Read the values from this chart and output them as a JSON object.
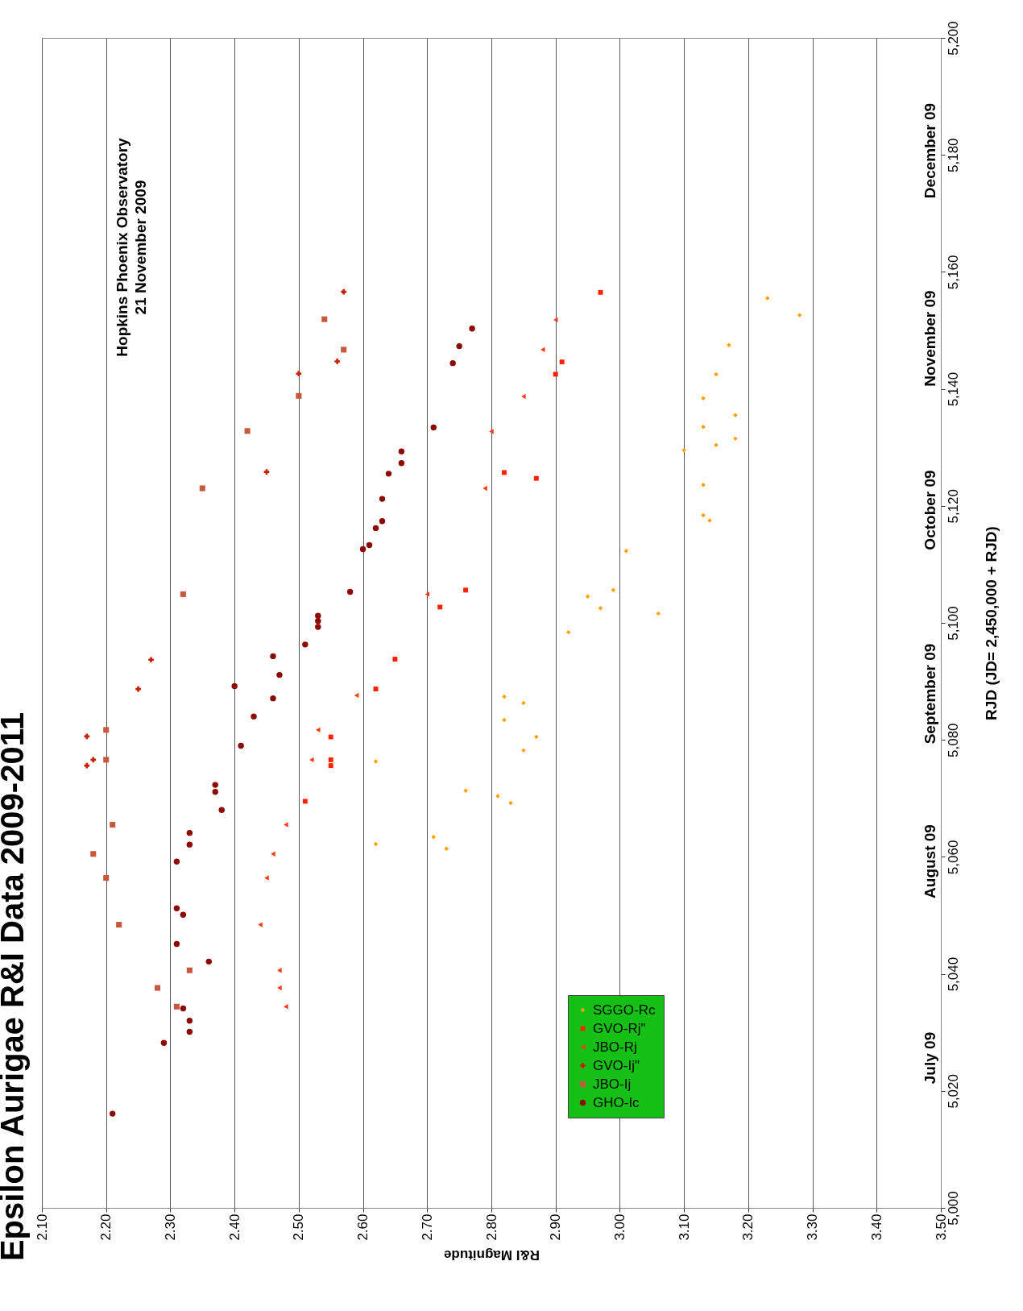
{
  "chart_data": {
    "type": "scatter",
    "title": "Epsilon Aurigae R&I Data 2009-2011",
    "xlabel": "R&I Magnitude",
    "ylabel": "RJD (JD= 2,450,000 + RJD)",
    "xlim": [
      2.1,
      3.5
    ],
    "ylim": [
      5000,
      5200
    ],
    "xticks": [
      {
        "value": 2.1,
        "label": "2.10"
      },
      {
        "value": 2.2,
        "label": "2.20"
      },
      {
        "value": 2.3,
        "label": "2.30"
      },
      {
        "value": 2.4,
        "label": "2.40"
      },
      {
        "value": 2.5,
        "label": "2.50"
      },
      {
        "value": 2.6,
        "label": "2.60"
      },
      {
        "value": 2.7,
        "label": "2.70"
      },
      {
        "value": 2.8,
        "label": "2.80"
      },
      {
        "value": 2.9,
        "label": "2.90"
      },
      {
        "value": 3.0,
        "label": "3.00"
      },
      {
        "value": 3.1,
        "label": "3.10"
      },
      {
        "value": 3.2,
        "label": "3.20"
      },
      {
        "value": 3.3,
        "label": "3.30"
      },
      {
        "value": 3.4,
        "label": "3.40"
      },
      {
        "value": 3.5,
        "label": "3.50"
      }
    ],
    "yticks": [
      {
        "value": 5000,
        "label": "5,000"
      },
      {
        "value": 5020,
        "label": "5,020"
      },
      {
        "value": 5040,
        "label": "5,040"
      },
      {
        "value": 5060,
        "label": "5,060"
      },
      {
        "value": 5080,
        "label": "5,080"
      },
      {
        "value": 5100,
        "label": "5,100"
      },
      {
        "value": 5120,
        "label": "5,120"
      },
      {
        "value": 5140,
        "label": "5,140"
      },
      {
        "value": 5160,
        "label": "5,160"
      },
      {
        "value": 5180,
        "label": "5,180"
      },
      {
        "value": 5200,
        "label": "5,200"
      }
    ],
    "grid": "x",
    "legend": "bottom right",
    "series": [
      {
        "name": "SGGO-Rc",
        "color": "#ffa000",
        "marker": "diamond",
        "x": [
          2.73,
          2.62,
          2.71,
          2.83,
          2.81,
          2.76,
          2.62,
          2.85,
          2.87,
          2.82,
          2.85,
          2.82,
          2.92,
          3.06,
          2.97,
          2.95,
          2.99,
          3.01,
          3.14,
          3.13,
          3.13,
          3.1,
          3.15,
          3.18,
          3.13,
          3.18,
          3.13,
          3.15,
          3.17,
          3.28,
          3.23
        ],
        "values": [
          5061.4,
          5062.2,
          5063.4,
          5069.2,
          5070.4,
          5071.3,
          5076.3,
          5078.2,
          5080.5,
          5083.4,
          5086.3,
          5087.4,
          5098.4,
          5101.6,
          5102.5,
          5104.5,
          5105.6,
          5112.3,
          5117.5,
          5118.4,
          5123.6,
          5129.5,
          5130.4,
          5131.5,
          5133.5,
          5135.5,
          5138.4,
          5142.5,
          5147.5,
          5152.6,
          5155.5
        ]
      },
      {
        "name": "GVO-Rj\"",
        "color": "#ff2000",
        "marker": "square",
        "x": [
          2.51,
          2.55,
          2.55,
          2.55,
          2.62,
          2.65,
          2.72,
          2.76,
          2.87,
          2.82,
          2.9,
          2.91,
          2.97
        ],
        "values": [
          5069.5,
          5075.6,
          5076.6,
          5080.5,
          5088.7,
          5093.8,
          5102.7,
          5105.6,
          5124.7,
          5125.7,
          5142.5,
          5144.6,
          5156.5
        ]
      },
      {
        "name": "JBO-Rj",
        "color": "#ff3a10",
        "marker": "triangle",
        "x": [
          2.48,
          2.47,
          2.47,
          2.44,
          2.45,
          2.46,
          2.48,
          2.52,
          2.53,
          2.59,
          2.7,
          2.79,
          2.8,
          2.85,
          2.88,
          2.9
        ],
        "values": [
          5034.4,
          5037.6,
          5040.6,
          5048.4,
          5056.4,
          5060.5,
          5065.5,
          5076.6,
          5081.7,
          5087.6,
          5104.9,
          5123.0,
          5132.7,
          5138.7,
          5146.7,
          5151.8
        ]
      },
      {
        "name": "GVO-Ij\"",
        "color": "#c81e00",
        "marker": "cross",
        "x": [
          2.17,
          2.18,
          2.17,
          2.25,
          2.27,
          2.45,
          2.5,
          2.56,
          2.57
        ],
        "values": [
          5075.6,
          5076.6,
          5080.6,
          5088.7,
          5093.7,
          5125.8,
          5142.6,
          5144.7,
          5156.6
        ]
      },
      {
        "name": "JBO-Ij",
        "color": "#c8583c",
        "marker": "square",
        "x": [
          2.31,
          2.28,
          2.33,
          2.22,
          2.2,
          2.18,
          2.21,
          2.2,
          2.2,
          2.32,
          2.35,
          2.42,
          2.5,
          2.57,
          2.54
        ],
        "values": [
          5034.4,
          5037.6,
          5040.6,
          5048.4,
          5056.4,
          5060.5,
          5065.5,
          5076.6,
          5081.7,
          5104.9,
          5123.0,
          5132.8,
          5138.8,
          5146.7,
          5151.9
        ]
      },
      {
        "name": "GHO-Ic",
        "color": "#8c0a00",
        "marker": "circle",
        "x": [
          2.21,
          2.29,
          2.33,
          2.33,
          2.32,
          2.36,
          2.31,
          2.32,
          2.31,
          2.31,
          2.33,
          2.33,
          2.38,
          2.37,
          2.37,
          2.41,
          2.43,
          2.46,
          2.4,
          2.47,
          2.46,
          2.51,
          2.53,
          2.53,
          2.53,
          2.58,
          2.6,
          2.61,
          2.62,
          2.63,
          2.63,
          2.64,
          2.66,
          2.66,
          2.71,
          2.74,
          2.75,
          2.77
        ],
        "values": [
          5016.1,
          5028.2,
          5030.1,
          5032.0,
          5034.1,
          5042.1,
          5045.1,
          5050.1,
          5051.2,
          5059.2,
          5062.1,
          5064.1,
          5068.0,
          5071.1,
          5072.3,
          5079.0,
          5084.0,
          5087.1,
          5089.2,
          5091.1,
          5094.3,
          5096.3,
          5099.3,
          5100.3,
          5101.2,
          5105.3,
          5112.6,
          5113.3,
          5116.2,
          5117.4,
          5121.2,
          5125.5,
          5127.3,
          5129.3,
          5133.4,
          5144.4,
          5147.3,
          5150.3
        ]
      }
    ],
    "annotations": [
      "Hopkins Phoenix Observatory",
      "21 November 2009",
      "July 09",
      "August 09",
      "September 09",
      "October 09",
      "November 09",
      "December 09"
    ]
  }
}
